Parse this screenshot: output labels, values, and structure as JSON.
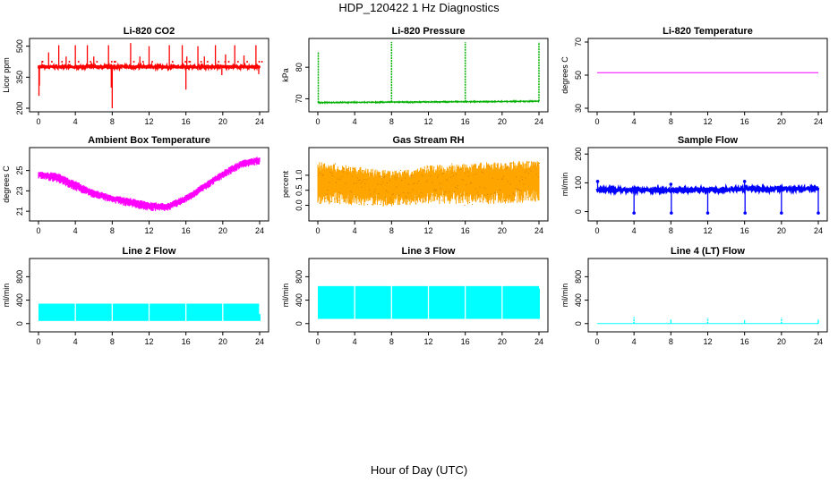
{
  "figure": {
    "title": "HDP_120422  1 Hz Diagnostics",
    "xlabel": "Hour of Day (UTC)"
  },
  "chart_data": [
    {
      "type": "line",
      "title": "Li-820 CO2",
      "ylabel": "Licor ppm",
      "xlim": [
        0,
        24
      ],
      "ylim": [
        200,
        520
      ],
      "yticks": [
        200,
        350,
        500
      ],
      "xticks": [
        0,
        4,
        8,
        12,
        16,
        20,
        24
      ],
      "color": "#ff0000",
      "style": "noisy-spikes",
      "baseline": 400,
      "noise": 8,
      "spikes": [
        {
          "x": 0.05,
          "y": 260
        },
        {
          "x": 0.1,
          "y": 310
        },
        {
          "x": 1.1,
          "y": 470
        },
        {
          "x": 2.2,
          "y": 505
        },
        {
          "x": 3.0,
          "y": 450
        },
        {
          "x": 4.0,
          "y": 505
        },
        {
          "x": 5.3,
          "y": 505
        },
        {
          "x": 6.0,
          "y": 450
        },
        {
          "x": 7.6,
          "y": 505
        },
        {
          "x": 7.9,
          "y": 300
        },
        {
          "x": 8.0,
          "y": 200
        },
        {
          "x": 10.0,
          "y": 515
        },
        {
          "x": 11.0,
          "y": 450
        },
        {
          "x": 12.0,
          "y": 500
        },
        {
          "x": 14.2,
          "y": 505
        },
        {
          "x": 15.6,
          "y": 505
        },
        {
          "x": 16.0,
          "y": 290
        },
        {
          "x": 16.1,
          "y": 450
        },
        {
          "x": 17.3,
          "y": 500
        },
        {
          "x": 18.0,
          "y": 450
        },
        {
          "x": 19.2,
          "y": 505
        },
        {
          "x": 19.9,
          "y": 360
        },
        {
          "x": 20.3,
          "y": 460
        },
        {
          "x": 21.3,
          "y": 505
        },
        {
          "x": 22.3,
          "y": 455
        },
        {
          "x": 23.6,
          "y": 505
        },
        {
          "x": 23.9,
          "y": 365
        }
      ]
    },
    {
      "type": "line",
      "title": "Li-820 Pressure",
      "ylabel": "kPa",
      "xlim": [
        0,
        24
      ],
      "ylim": [
        67,
        88
      ],
      "yticks": [
        70,
        80
      ],
      "xticks": [
        0,
        4,
        8,
        12,
        16,
        20,
        24
      ],
      "color": "#00b000",
      "style": "flat-spikes",
      "baseline": [
        [
          0,
          68.8
        ],
        [
          24,
          69.2
        ]
      ],
      "noise": 0.15,
      "spikes": [
        {
          "x": 0.05,
          "y": 85
        },
        {
          "x": 8.0,
          "y": 88
        },
        {
          "x": 16.0,
          "y": 88
        },
        {
          "x": 24.0,
          "y": 88
        }
      ]
    },
    {
      "type": "line",
      "title": "Li-820 Temperature",
      "ylabel": "degrees C",
      "xlim": [
        0,
        24
      ],
      "ylim": [
        30,
        70
      ],
      "yticks": [
        30,
        50,
        70
      ],
      "xticks": [
        0,
        4,
        8,
        12,
        16,
        20,
        24
      ],
      "color": "#ff00ff",
      "style": "flat",
      "baseline": [
        [
          0,
          51.5
        ],
        [
          24,
          51.5
        ]
      ]
    },
    {
      "type": "area",
      "title": "Ambient Box Temperature",
      "ylabel": "degrees C",
      "xlim": [
        0,
        24
      ],
      "ylim": [
        20.4,
        26.9
      ],
      "yticks": [
        21,
        23,
        25
      ],
      "xticks": [
        0,
        4,
        8,
        12,
        16,
        20,
        24
      ],
      "color": "#ff00ff",
      "style": "band",
      "upper": [
        [
          0,
          24.9
        ],
        [
          2,
          24.8
        ],
        [
          4,
          24.0
        ],
        [
          6,
          23.1
        ],
        [
          8,
          22.6
        ],
        [
          10,
          22.3
        ],
        [
          12,
          21.9
        ],
        [
          14,
          21.8
        ],
        [
          16,
          22.6
        ],
        [
          18,
          23.8
        ],
        [
          20,
          25.0
        ],
        [
          22,
          26.0
        ],
        [
          24,
          26.4
        ]
      ],
      "lower": [
        [
          0,
          24.2
        ],
        [
          2,
          23.8
        ],
        [
          4,
          23.0
        ],
        [
          6,
          22.3
        ],
        [
          8,
          21.8
        ],
        [
          10,
          21.4
        ],
        [
          12,
          21.0
        ],
        [
          14,
          21.0
        ],
        [
          16,
          21.8
        ],
        [
          18,
          23.0
        ],
        [
          20,
          24.2
        ],
        [
          22,
          25.2
        ],
        [
          24,
          25.6
        ]
      ]
    },
    {
      "type": "area",
      "title": "Gas Stream RH",
      "ylabel": "percent",
      "xlim": [
        0,
        24
      ],
      "ylim": [
        -0.4,
        1.8
      ],
      "yticks": [
        0.0,
        0.5,
        1.0
      ],
      "xticks": [
        0,
        4,
        8,
        12,
        16,
        20,
        24
      ],
      "color": "#ffa500",
      "overlay_color": "#d08000",
      "style": "band",
      "upper": [
        [
          0,
          1.45
        ],
        [
          4,
          1.3
        ],
        [
          8,
          1.15
        ],
        [
          10,
          1.2
        ],
        [
          12,
          1.35
        ],
        [
          16,
          1.4
        ],
        [
          18,
          1.45
        ],
        [
          20,
          1.45
        ],
        [
          24,
          1.5
        ]
      ],
      "lower": [
        [
          0,
          0.05
        ],
        [
          4,
          0.0
        ],
        [
          8,
          -0.05
        ],
        [
          12,
          0.05
        ],
        [
          16,
          0.0
        ],
        [
          20,
          0.05
        ],
        [
          24,
          0.1
        ]
      ]
    },
    {
      "type": "line",
      "title": "Sample Flow",
      "ylabel": "ml/min",
      "xlim": [
        0,
        24
      ],
      "ylim": [
        -20,
        210
      ],
      "yticks": [
        0,
        100,
        200
      ],
      "xticks": [
        0,
        4,
        8,
        12,
        16,
        20,
        24
      ],
      "color": "#0000ff",
      "style": "thick-dips",
      "baseline": [
        [
          0,
          75
        ],
        [
          12,
          75
        ],
        [
          16,
          79
        ],
        [
          24,
          79
        ]
      ],
      "noise": 4,
      "spikes": [
        {
          "x": 0.05,
          "y": 105
        },
        {
          "x": 4.0,
          "y": -5
        },
        {
          "x": 8.0,
          "y": 95
        },
        {
          "x": 8.05,
          "y": -5
        },
        {
          "x": 12.0,
          "y": -5
        },
        {
          "x": 16.0,
          "y": 105
        },
        {
          "x": 16.05,
          "y": -5
        },
        {
          "x": 20.0,
          "y": -5
        },
        {
          "x": 24.0,
          "y": -5
        }
      ]
    },
    {
      "type": "area",
      "title": "Line 2 Flow",
      "ylabel": "ml/min",
      "xlim": [
        0,
        24
      ],
      "ylim": [
        -80,
        1050
      ],
      "yticks": [
        0,
        400,
        800
      ],
      "xticks": [
        0,
        4,
        8,
        12,
        16,
        20,
        24
      ],
      "color": "#00ffff",
      "style": "block",
      "top": 340,
      "bottom": 45,
      "gaps": [
        4,
        8,
        12,
        16,
        20,
        24
      ],
      "tail": [
        {
          "x": 24.0,
          "y": 160
        }
      ]
    },
    {
      "type": "area",
      "title": "Line 3 Flow",
      "ylabel": "ml/min",
      "xlim": [
        0,
        24
      ],
      "ylim": [
        -80,
        1050
      ],
      "yticks": [
        0,
        400,
        800
      ],
      "xticks": [
        0,
        4,
        8,
        12,
        16,
        20,
        24
      ],
      "color": "#00ffff",
      "style": "block",
      "top": 640,
      "bottom": 80,
      "gaps": [
        4,
        8,
        12,
        16,
        20
      ],
      "tail": [
        {
          "x": 24.0,
          "y": 600
        }
      ]
    },
    {
      "type": "line",
      "title": "Line 4 (LT) Flow",
      "ylabel": "ml/min",
      "xlim": [
        0,
        24
      ],
      "ylim": [
        -80,
        1050
      ],
      "yticks": [
        0,
        400,
        800
      ],
      "xticks": [
        0,
        4,
        8,
        12,
        16,
        20,
        24
      ],
      "color": "#00ffff",
      "style": "flat-spikes",
      "baseline": [
        [
          0,
          0
        ],
        [
          24,
          0
        ]
      ],
      "noise": 0,
      "spikes": [
        {
          "x": 4.0,
          "y": 110
        },
        {
          "x": 8.0,
          "y": 70
        },
        {
          "x": 12.0,
          "y": 100
        },
        {
          "x": 16.0,
          "y": 60
        },
        {
          "x": 20.0,
          "y": 100
        },
        {
          "x": 24.0,
          "y": 70
        }
      ]
    }
  ]
}
